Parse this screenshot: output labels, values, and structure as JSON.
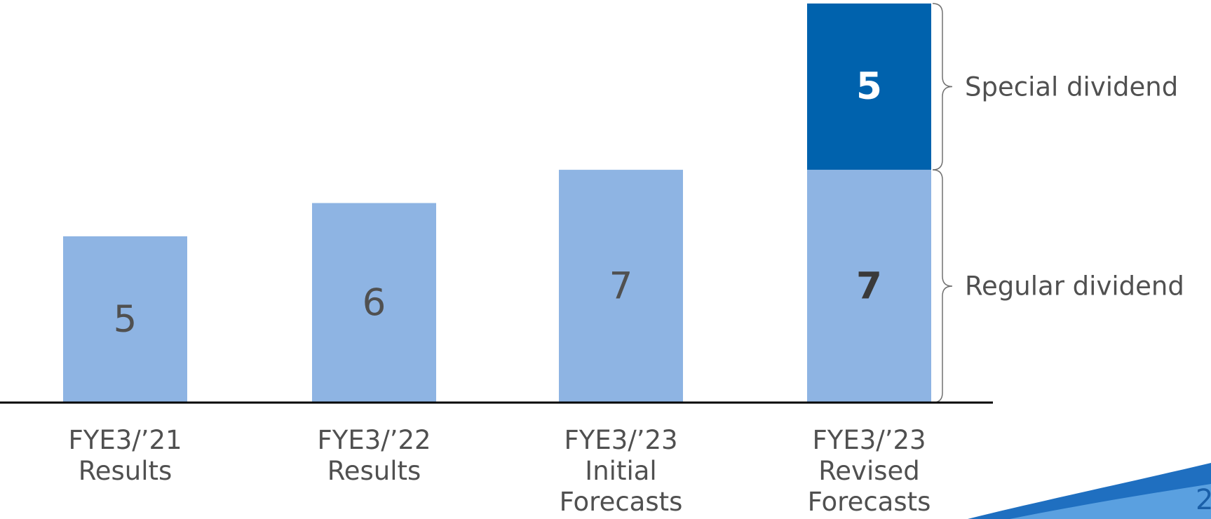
{
  "chart_data": {
    "type": "bar",
    "stacked": true,
    "categories": [
      "FYE3/’21\nResults",
      "FYE3/’22\nResults",
      "FYE3/’23\nInitial\nForecasts",
      "FYE3/’23\nRevised\nForecasts"
    ],
    "series": [
      {
        "name": "Regular dividend",
        "color": "#8eb4e3",
        "values": [
          5,
          6,
          7,
          7
        ]
      },
      {
        "name": "Special dividend",
        "color": "#0062ad",
        "values": [
          null,
          null,
          null,
          5
        ]
      }
    ],
    "ylim": [
      0,
      12
    ]
  },
  "page_number": "2"
}
